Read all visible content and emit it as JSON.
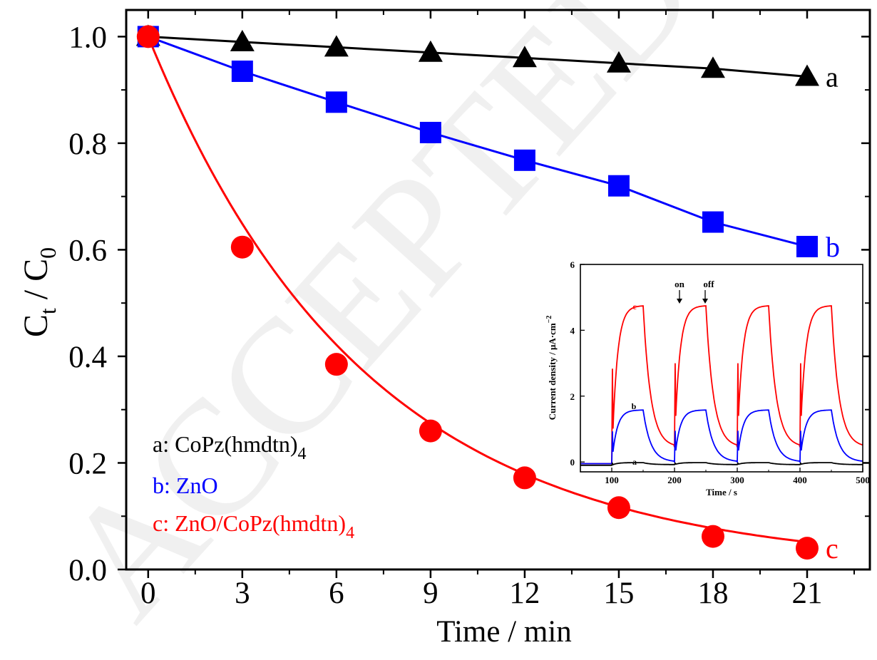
{
  "watermark": "ACCEPTED MANUSCRIPT",
  "chart_data": [
    {
      "type": "line",
      "xlabel": "Time / min",
      "ylabel": {
        "main": "C",
        "sub1": "t",
        "mid": " / C",
        "sub2": "0"
      },
      "xlim": [
        -0.7,
        23
      ],
      "ylim": [
        0,
        1.05
      ],
      "xticks": [
        "0",
        "3",
        "6",
        "9",
        "12",
        "15",
        "18",
        "21"
      ],
      "yticks": [
        "0.0",
        "0.2",
        "0.4",
        "0.6",
        "0.8",
        "1.0"
      ],
      "x": [
        0,
        3,
        6,
        9,
        12,
        15,
        18,
        21
      ],
      "series": [
        {
          "name": "a",
          "color": "#000000",
          "marker": "triangle",
          "values": [
            1.0,
            0.99,
            0.98,
            0.97,
            0.96,
            0.95,
            0.94,
            0.925
          ]
        },
        {
          "name": "b",
          "color": "#0000ff",
          "marker": "square",
          "values": [
            1.0,
            0.935,
            0.877,
            0.82,
            0.768,
            0.72,
            0.652,
            0.606
          ]
        },
        {
          "name": "c",
          "color": "#ff0000",
          "marker": "circle",
          "values": [
            1.0,
            0.605,
            0.385,
            0.26,
            0.172,
            0.116,
            0.062,
            0.04
          ]
        }
      ],
      "legend": {
        "position": "bottom-left",
        "entries": [
          {
            "prefix": "a: CoPz(hmdtn)",
            "sub": "4",
            "color": "#000000"
          },
          {
            "prefix": "b: ZnO",
            "sub": "",
            "color": "#0000ff"
          },
          {
            "prefix": "c: ZnO/CoPz(hmdtn)",
            "sub": "4",
            "color": "#ff0000"
          }
        ]
      }
    },
    {
      "type": "line",
      "position": "inset",
      "xlabel": "Time / s",
      "ylabel": "Current density / μA·cm",
      "ylabel_sup": "−2",
      "xlim": [
        50,
        500
      ],
      "ylim": [
        -0.3,
        6
      ],
      "xticks": [
        "100",
        "200",
        "300",
        "400",
        "500"
      ],
      "yticks": [
        "0",
        "2",
        "4",
        "6"
      ],
      "annotations": [
        "on",
        "off"
      ],
      "light_periods": [
        [
          100,
          150
        ],
        [
          200,
          250
        ],
        [
          300,
          350
        ],
        [
          400,
          450
        ]
      ],
      "series": [
        {
          "name": "c",
          "color": "#ff0000",
          "baseline": -0.05,
          "plateau": 4.75,
          "off_level": 0.45
        },
        {
          "name": "b",
          "color": "#0000ff",
          "baseline": -0.05,
          "plateau": 1.58,
          "off_level": 0.0
        },
        {
          "name": "a",
          "color": "#000000",
          "baseline": -0.1,
          "plateau": -0.02,
          "off_level": -0.08
        }
      ]
    }
  ]
}
